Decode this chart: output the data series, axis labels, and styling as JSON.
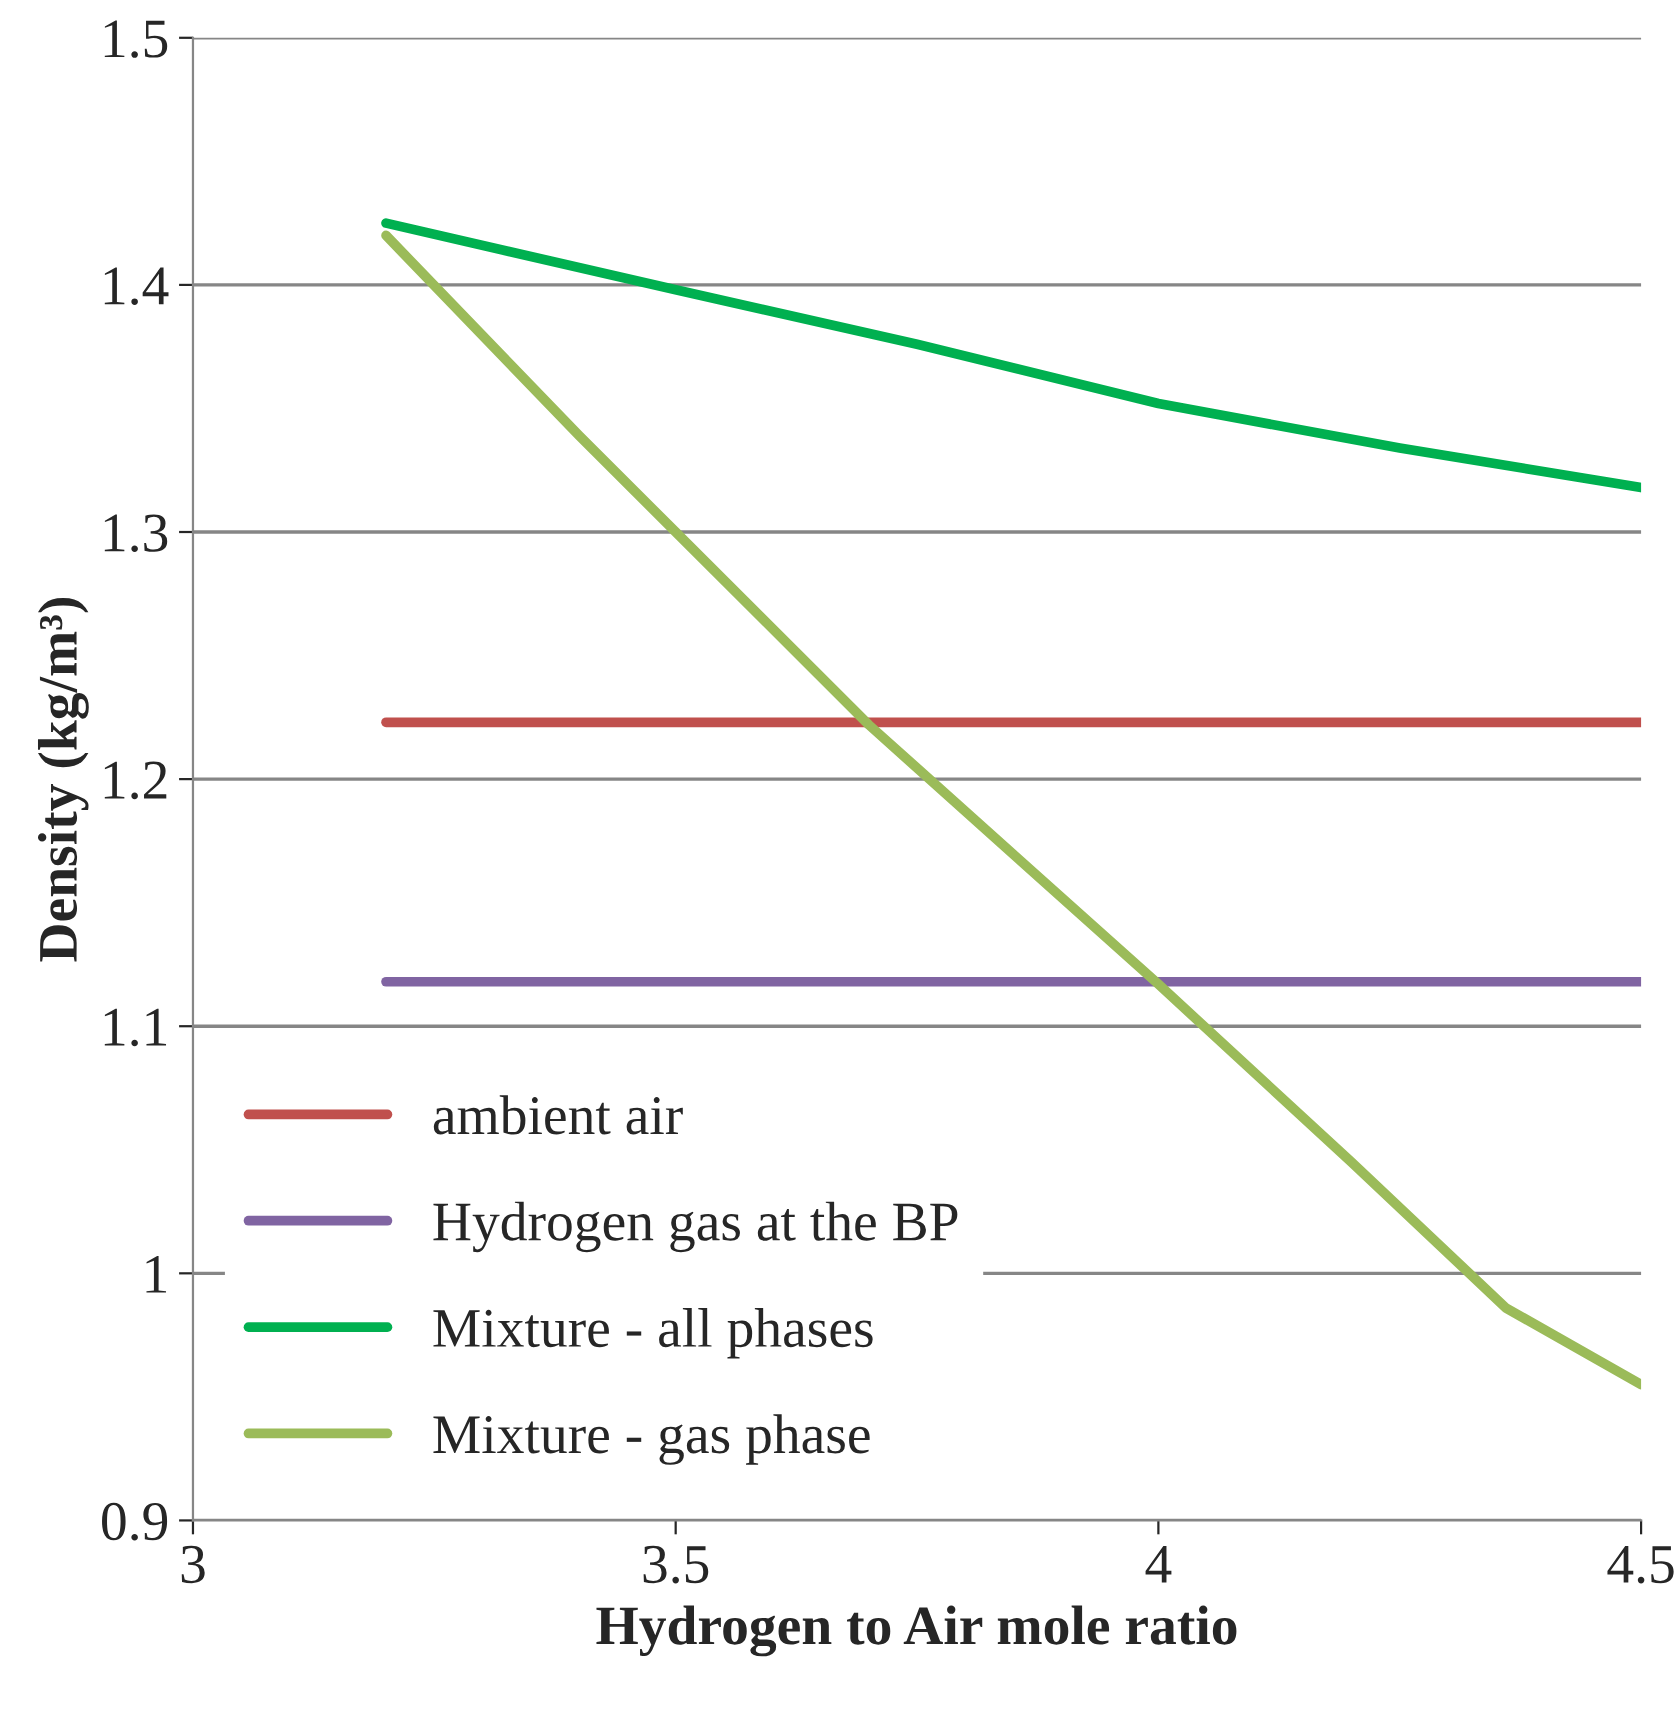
{
  "chart_data": {
    "type": "line",
    "xlabel": "Hydrogen to Air mole ratio",
    "ylabel": "Density (kg/m³)",
    "xlim": [
      3,
      4.5
    ],
    "xticks": [
      3,
      3.5,
      4,
      4.5
    ],
    "ylim": [
      0.9,
      1.5
    ],
    "yticks": [
      0.9,
      1,
      1.1,
      1.2,
      1.3,
      1.4,
      1.5
    ],
    "grid": "y",
    "legend": "bottom left",
    "marker": "none",
    "line_style": "solid",
    "series": [
      {
        "name": "ambient air",
        "color": "#c0504d",
        "x": [
          3.2,
          4.5
        ],
        "values": [
          1.223,
          1.223
        ]
      },
      {
        "name": "Hydrogen gas at the BP",
        "color": "#8064a2",
        "x": [
          3.2,
          4.5
        ],
        "values": [
          1.118,
          1.118
        ]
      },
      {
        "name": "Mixture - all phases",
        "color": "#00b050",
        "x": [
          3.2,
          3.5,
          3.75,
          4.0,
          4.25,
          4.5
        ],
        "values": [
          1.425,
          1.398,
          1.376,
          1.352,
          1.334,
          1.318
        ]
      },
      {
        "name": "Mixture - gas phase",
        "color": "#9bbb59",
        "x": [
          3.2,
          3.4,
          3.5,
          3.7,
          4.0,
          4.2,
          4.36,
          4.5
        ],
        "values": [
          1.42,
          1.339,
          1.3,
          1.222,
          1.117,
          1.045,
          0.986,
          0.955
        ]
      }
    ]
  }
}
